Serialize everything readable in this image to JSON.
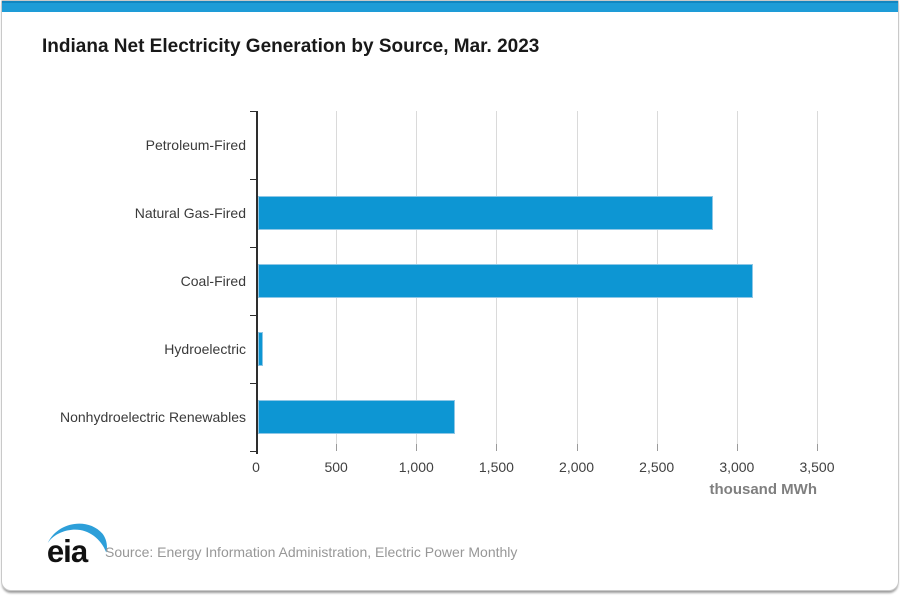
{
  "page": {
    "title": "Indiana Net Electricity Generation by Source, Mar. 2023",
    "accent_color": "#1e9cd7"
  },
  "chart_data": {
    "type": "bar",
    "orientation": "horizontal",
    "title": "Indiana Net Electricity Generation by Source, Mar. 2023",
    "categories": [
      "Petroleum-Fired",
      "Natural Gas-Fired",
      "Coal-Fired",
      "Hydroelectric",
      "Nonhydroelectric Renewables"
    ],
    "values": [
      0,
      2840,
      3090,
      30,
      1230
    ],
    "xlabel": "thousand MWh",
    "ylabel": "",
    "xlim": [
      0,
      3500
    ],
    "xticks": [
      0,
      500,
      1000,
      1500,
      2000,
      2500,
      3000,
      3500
    ],
    "xtick_labels": [
      "0",
      "500",
      "1,000",
      "1,500",
      "2,000",
      "2,500",
      "3,000",
      "3,500"
    ],
    "grid": "vertical",
    "legend": "none",
    "bar_color": "#0d96d3",
    "bar_border_color": "#8ec7e6"
  },
  "footer": {
    "logo_text": "eia",
    "logo_swoosh_color": "#2d9fd9",
    "source": "Source: Energy Information Administration, Electric Power Monthly"
  }
}
